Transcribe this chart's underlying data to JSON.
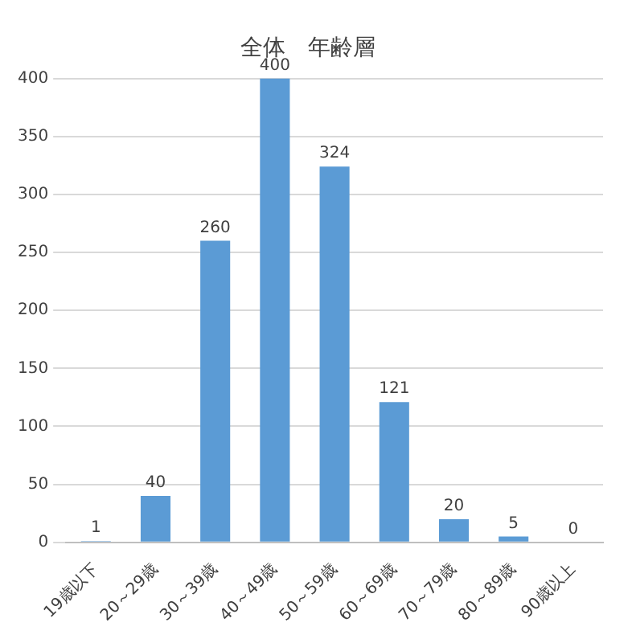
{
  "chart_data": {
    "type": "bar",
    "title": "全体　年齢層",
    "categories": [
      "19歳以下",
      "20～29歳",
      "30～39歳",
      "40～49歳",
      "50～59歳",
      "60～69歳",
      "70～79歳",
      "80～89歳",
      "90歳以上"
    ],
    "values": [
      1,
      40,
      260,
      400,
      324,
      121,
      20,
      5,
      0
    ],
    "color": "#5b9bd5",
    "ylim": [
      0,
      400
    ],
    "yticks": [
      0,
      50,
      100,
      150,
      200,
      250,
      300,
      350,
      400
    ],
    "grid": "y",
    "data_labels": true,
    "legend": false
  }
}
